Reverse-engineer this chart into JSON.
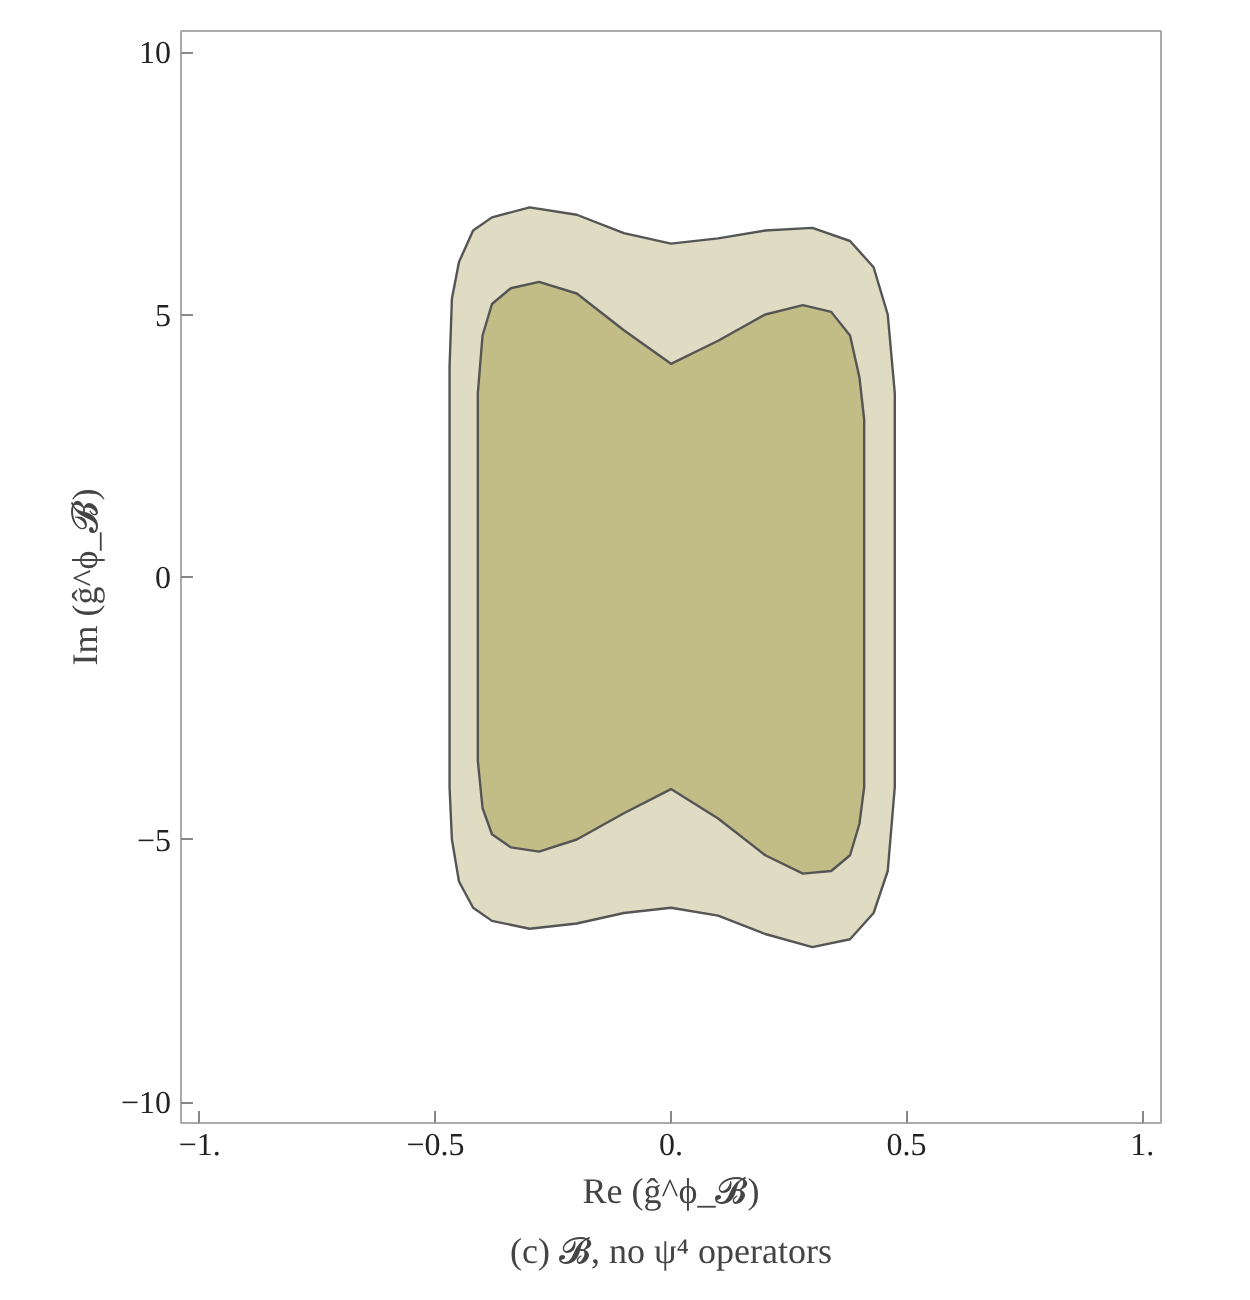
{
  "chart_data": {
    "type": "area",
    "title": "(c) 𝓑, no ψ⁴ operators",
    "xlabel": "Re (ĝ^ϕ_𝓑)",
    "ylabel": "Im (ĝ^ϕ_𝓑)",
    "xlim": [
      -1.04,
      1.04
    ],
    "ylim": [
      -10.4,
      10.4
    ],
    "xticks": [
      {
        "value": -1,
        "label": "−1."
      },
      {
        "value": -0.5,
        "label": "−0.5"
      },
      {
        "value": 0,
        "label": "0."
      },
      {
        "value": 0.5,
        "label": "0.5"
      },
      {
        "value": 1,
        "label": "1."
      }
    ],
    "yticks": [
      {
        "value": -10,
        "label": "−10"
      },
      {
        "value": -5,
        "label": "−5"
      },
      0,
      5,
      10
    ],
    "grid": false,
    "series": [
      {
        "color": "#dfdcc3",
        "x": [
          -0.47,
          -0.465,
          -0.45,
          -0.42,
          -0.38,
          -0.3,
          -0.2,
          -0.1,
          0,
          0.1,
          0.2,
          0.3,
          0.38,
          0.43,
          0.46,
          0.475
        ],
        "values": [
          4,
          5.3,
          6.0,
          6.6,
          6.85,
          7.04,
          6.9,
          6.55,
          6.35,
          6.45,
          6.6,
          6.65,
          6.4,
          5.9,
          5.0,
          3.5
        ]
      },
      {
        "color": "#dfdcc3",
        "x": [
          -0.47,
          -0.465,
          -0.45,
          -0.42,
          -0.38,
          -0.3,
          -0.2,
          -0.1,
          0,
          0.1,
          0.2,
          0.3,
          0.38,
          0.43,
          0.46,
          0.475
        ],
        "values": [
          -4,
          -5.0,
          -5.8,
          -6.3,
          -6.55,
          -6.7,
          -6.6,
          -6.4,
          -6.3,
          -6.45,
          -6.8,
          -7.05,
          -6.9,
          -6.4,
          -5.6,
          -4
        ]
      },
      {
        "color": "#c2bd86",
        "x": [
          -0.41,
          -0.4,
          -0.38,
          -0.34,
          -0.28,
          -0.2,
          -0.1,
          0,
          0.1,
          0.2,
          0.28,
          0.34,
          0.38,
          0.4,
          0.41
        ],
        "values": [
          3.5,
          4.6,
          5.2,
          5.5,
          5.62,
          5.4,
          4.7,
          4.06,
          4.5,
          5.0,
          5.18,
          5.05,
          4.6,
          3.8,
          3.0
        ]
      },
      {
        "color": "#c2bd86",
        "x": [
          -0.41,
          -0.4,
          -0.38,
          -0.34,
          -0.28,
          -0.2,
          -0.1,
          0,
          0.1,
          0.2,
          0.28,
          0.34,
          0.38,
          0.4,
          0.41
        ],
        "values": [
          -3.5,
          -4.4,
          -4.9,
          -5.15,
          -5.23,
          -5.0,
          -4.5,
          -4.04,
          -4.6,
          -5.3,
          -5.65,
          -5.6,
          -5.3,
          -4.7,
          -4
        ]
      }
    ]
  }
}
